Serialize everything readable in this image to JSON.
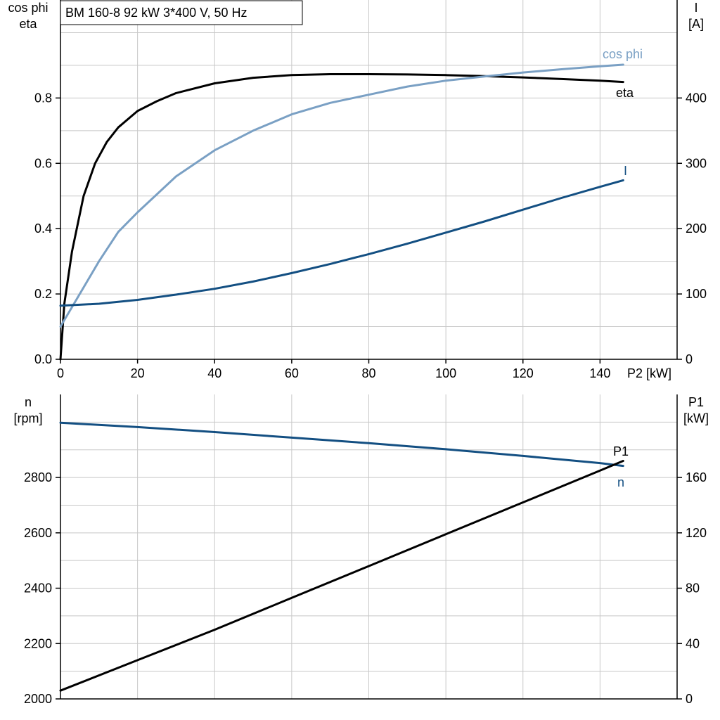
{
  "title": "BM 160-8   92 kW   3*400 V, 50 Hz",
  "colors": {
    "eta": "#000000",
    "cos_phi": "#7aa0c4",
    "current": "#134f82",
    "speed": "#134f82",
    "p1": "#000000",
    "grid": "#c8c8c8",
    "axis": "#000000"
  },
  "chart_data": [
    {
      "type": "line",
      "x_label": "P2 [kW]",
      "x_ticks": [
        "0",
        "20",
        "40",
        "60",
        "80",
        "100",
        "120",
        "140"
      ],
      "xlim": [
        0,
        160
      ],
      "y_left_label": [
        "cos phi",
        "eta"
      ],
      "y_left_ticks": [
        "0.0",
        "0.2",
        "0.4",
        "0.6",
        "0.8"
      ],
      "y_left_lim": [
        0,
        1.1
      ],
      "y_right_label": [
        "I",
        "[A]"
      ],
      "y_right_ticks": [
        "0",
        "100",
        "200",
        "300",
        "400"
      ],
      "y_right_lim": [
        0,
        550
      ],
      "grid": true,
      "series": [
        {
          "name": "eta",
          "axis": "left",
          "x": [
            0,
            1,
            3,
            6,
            9,
            12,
            15,
            20,
            25,
            30,
            40,
            50,
            60,
            70,
            80,
            90,
            100,
            110,
            120,
            130,
            140,
            146
          ],
          "y": [
            0,
            0.17,
            0.33,
            0.5,
            0.6,
            0.665,
            0.71,
            0.76,
            0.79,
            0.815,
            0.845,
            0.862,
            0.87,
            0.873,
            0.873,
            0.872,
            0.87,
            0.867,
            0.863,
            0.858,
            0.853,
            0.849
          ]
        },
        {
          "name": "cos phi",
          "axis": "left",
          "x": [
            0,
            5,
            10,
            15,
            20,
            30,
            40,
            50,
            60,
            70,
            80,
            90,
            100,
            110,
            120,
            130,
            140,
            146
          ],
          "y": [
            0.1,
            0.2,
            0.3,
            0.39,
            0.45,
            0.56,
            0.64,
            0.7,
            0.75,
            0.785,
            0.81,
            0.835,
            0.853,
            0.866,
            0.878,
            0.888,
            0.897,
            0.902
          ]
        },
        {
          "name": "I",
          "axis": "right",
          "x": [
            0,
            10,
            20,
            30,
            40,
            50,
            60,
            70,
            80,
            90,
            100,
            110,
            120,
            130,
            140,
            146
          ],
          "y": [
            82,
            85,
            91,
            99,
            108,
            119,
            132,
            146,
            161,
            177,
            194,
            211,
            229,
            247,
            264,
            274
          ]
        }
      ]
    },
    {
      "type": "line",
      "x_label": "",
      "xlim": [
        0,
        160
      ],
      "y_left_label": [
        "n",
        "[rpm]"
      ],
      "y_left_ticks": [
        "2000",
        "2200",
        "2400",
        "2600",
        "2800"
      ],
      "y_left_lim": [
        2000,
        3100
      ],
      "y_right_label": [
        "P1",
        "[kW]"
      ],
      "y_right_ticks": [
        "0",
        "40",
        "80",
        "120",
        "160"
      ],
      "y_right_lim": [
        0,
        220
      ],
      "grid": true,
      "series": [
        {
          "name": "n",
          "axis": "left",
          "x": [
            0,
            20,
            40,
            60,
            80,
            100,
            120,
            140,
            146
          ],
          "y": [
            2998,
            2982,
            2964,
            2944,
            2924,
            2902,
            2878,
            2852,
            2842
          ]
        },
        {
          "name": "P1",
          "axis": "right",
          "x": [
            0,
            20,
            40,
            60,
            80,
            100,
            120,
            140,
            146
          ],
          "y": [
            6,
            28,
            50,
            73,
            96,
            119,
            142,
            165,
            172
          ]
        }
      ]
    }
  ]
}
